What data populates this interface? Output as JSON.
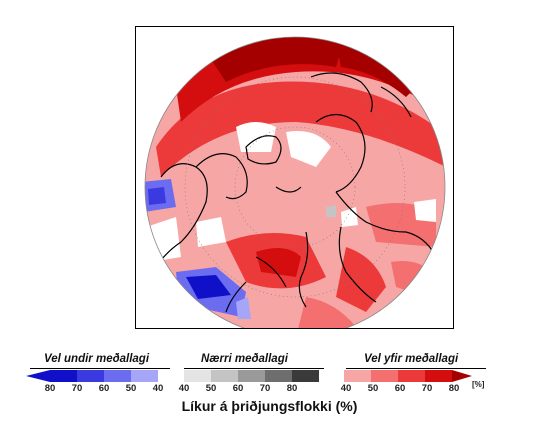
{
  "legend": {
    "below": {
      "title": "Vel undir meðallagi",
      "ticks": [
        "80",
        "70",
        "60",
        "50",
        "40"
      ],
      "colors": [
        "#1010c8",
        "#3a3ae0",
        "#6c6cf0",
        "#a6a6f8"
      ]
    },
    "normal": {
      "title": "Nærri meðallagi",
      "ticks": [
        "40",
        "50",
        "60",
        "70",
        "80"
      ],
      "colors": [
        "#e4e4e4",
        "#c4c4c4",
        "#9a9a9a",
        "#6e6e6e",
        "#3a3a3a"
      ]
    },
    "above": {
      "title": "Vel yfir meðallagi",
      "ticks": [
        "40",
        "50",
        "60",
        "70",
        "80"
      ],
      "colors": [
        "#f7a6a6",
        "#f47070",
        "#ec3a3a",
        "#d40e0e",
        "#a40000"
      ],
      "unit": "[%]"
    }
  },
  "axis_title": "Líkur á þriðjungsflokki (%)",
  "map": {
    "projection": "north-polar-stereographic",
    "background_color": "#ffffff",
    "coastline_color": "#000000"
  }
}
